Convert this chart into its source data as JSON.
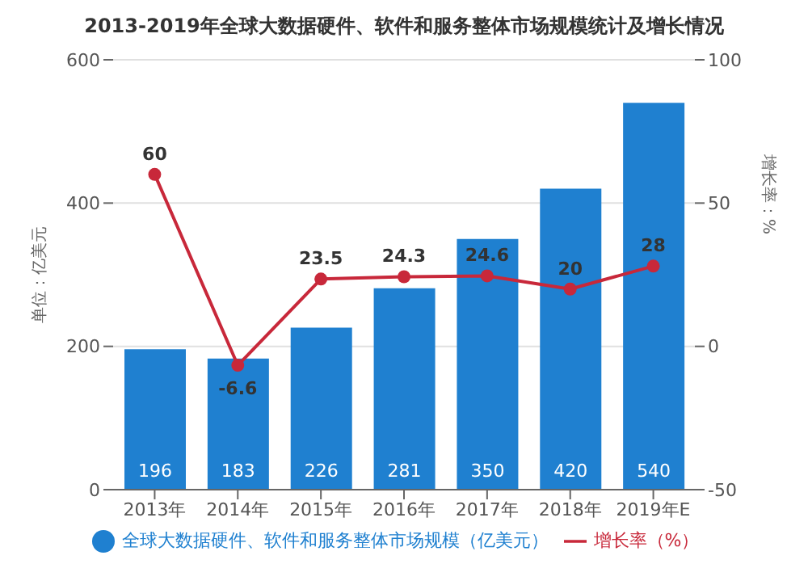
{
  "chart_data": {
    "type": "bar",
    "title": "2013-2019年全球大数据硬件、软件和服务整体市场规模统计及增长情况",
    "ylabel": "单位：亿美元",
    "y2label": "增长率：%",
    "categories": [
      "2013年",
      "2014年",
      "2015年",
      "2016年",
      "2017年",
      "2018年",
      "2019年E"
    ],
    "series": [
      {
        "name": "全球大数据硬件、软件和服务整体市场规模（亿美元）",
        "color": "#1f80d0",
        "values": [
          196,
          183,
          226,
          281,
          350,
          420,
          540
        ]
      },
      {
        "name": "增长率（%）",
        "type": "line",
        "axis": "y2",
        "color": "#c8283a",
        "values": [
          60,
          -6.6,
          23.5,
          24.3,
          24.6,
          20,
          28
        ]
      }
    ],
    "ylim": [
      0,
      600
    ],
    "yticks": [
      0,
      200,
      400,
      600
    ],
    "y2lim": [
      -50,
      100
    ],
    "y2ticks": [
      -50,
      0,
      50,
      100
    ],
    "grid": "y",
    "legend": "bottom",
    "marker": "circle",
    "data_labels": true
  }
}
